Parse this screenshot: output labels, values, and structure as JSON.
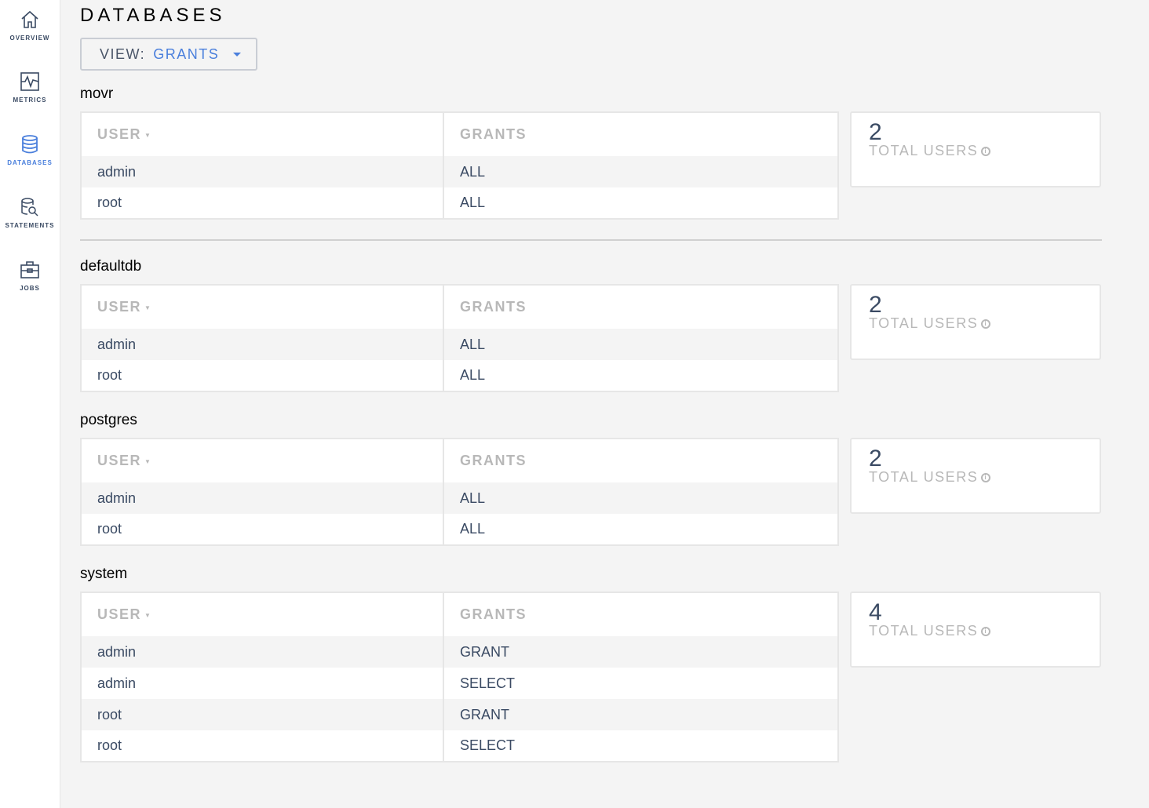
{
  "sidebar": {
    "items": [
      {
        "label": "OVERVIEW",
        "icon": "home-icon",
        "active": false
      },
      {
        "label": "METRICS",
        "icon": "metrics-icon",
        "active": false
      },
      {
        "label": "DATABASES",
        "icon": "database-icon",
        "active": true
      },
      {
        "label": "STATEMENTS",
        "icon": "statements-icon",
        "active": false
      },
      {
        "label": "JOBS",
        "icon": "briefcase-icon",
        "active": false
      }
    ]
  },
  "header": {
    "title": "DATABASES",
    "view_label": "VIEW:",
    "view_value": "GRANTS"
  },
  "columns": {
    "user": "USER",
    "grants": "GRANTS"
  },
  "card_label": "TOTAL USERS",
  "databases": [
    {
      "name": "movr",
      "total_users": "2",
      "rows": [
        [
          "admin",
          "ALL"
        ],
        [
          "root",
          "ALL"
        ]
      ]
    },
    {
      "name": "defaultdb",
      "total_users": "2",
      "rows": [
        [
          "admin",
          "ALL"
        ],
        [
          "root",
          "ALL"
        ]
      ]
    },
    {
      "name": "postgres",
      "total_users": "2",
      "rows": [
        [
          "admin",
          "ALL"
        ],
        [
          "root",
          "ALL"
        ]
      ]
    },
    {
      "name": "system",
      "total_users": "4",
      "rows": [
        [
          "admin",
          "GRANT"
        ],
        [
          "admin",
          "SELECT"
        ],
        [
          "root",
          "GRANT"
        ],
        [
          "root",
          "SELECT"
        ]
      ]
    }
  ],
  "colors": {
    "accent": "#4a7fdc",
    "text": "#3a4a63",
    "muted": "#b8b8b8"
  }
}
